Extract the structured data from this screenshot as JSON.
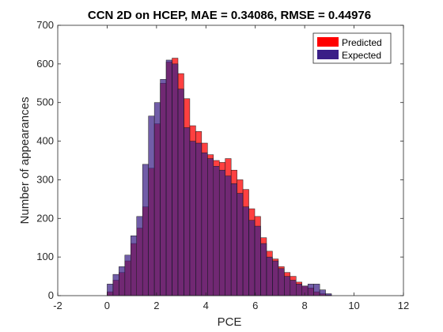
{
  "chart_data": {
    "type": "bar",
    "title": "CCN 2D on HCEP, MAE = 0.34086, RMSE = 0.44976",
    "xlabel": "PCE",
    "ylabel": "Number of appearances",
    "xlim": [
      -2,
      12
    ],
    "ylim": [
      0,
      700
    ],
    "xticks": [
      "-2",
      "0",
      "2",
      "4",
      "6",
      "8",
      "10",
      "12"
    ],
    "yticks": [
      "0",
      "100",
      "200",
      "300",
      "400",
      "500",
      "600",
      "700"
    ],
    "grid": false,
    "legend_position": "top-right",
    "bin_width": 0.2391,
    "bin_start": 0,
    "series": [
      {
        "name": "Predicted",
        "color": "#ff0000",
        "values": [
          10,
          40,
          60,
          90,
          135,
          175,
          230,
          330,
          445,
          550,
          605,
          615,
          575,
          510,
          440,
          425,
          395,
          365,
          350,
          345,
          355,
          325,
          300,
          275,
          225,
          205,
          150,
          115,
          95,
          75,
          60,
          50,
          35,
          25,
          20,
          10,
          5,
          2
        ]
      },
      {
        "name": "Expected",
        "color": "#3a1e87",
        "values": [
          30,
          55,
          75,
          105,
          155,
          205,
          340,
          465,
          500,
          560,
          610,
          600,
          535,
          435,
          400,
          395,
          370,
          355,
          335,
          325,
          310,
          290,
          265,
          230,
          195,
          180,
          135,
          100,
          90,
          70,
          50,
          40,
          30,
          25,
          30,
          30,
          15,
          5
        ]
      }
    ]
  }
}
